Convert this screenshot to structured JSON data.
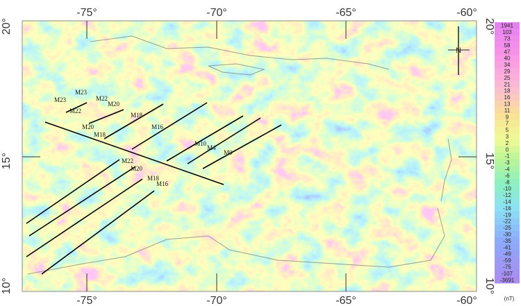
{
  "map": {
    "axes": {
      "top": [
        "-75°",
        "-70°",
        "-65°",
        "-60°"
      ],
      "bottom": [
        "-75°",
        "-70°",
        "-65°",
        "-60°"
      ],
      "left": [
        "20°",
        "15°",
        "10°"
      ],
      "right": [
        "20°",
        "15°",
        "10°"
      ]
    },
    "compass": "N",
    "anomaly_labels": [
      "M23",
      "M23",
      "M22",
      "M20",
      "M22",
      "M18",
      "M20",
      "M18",
      "M16",
      "M10",
      "M4",
      "M0",
      "M22",
      "M20",
      "M18",
      "M16"
    ],
    "colorbar": {
      "labels": [
        "1941",
        "103",
        "73",
        "58",
        "47",
        "40",
        "34",
        "29",
        "25",
        "21",
        "18",
        "16",
        "13",
        "11",
        "9",
        "7",
        "5",
        "3",
        "2",
        "0",
        "-1",
        "-3",
        "-4",
        "-6",
        "-8",
        "-10",
        "-12",
        "-14",
        "-16",
        "-19",
        "-22",
        "-25",
        "-30",
        "-35",
        "-41",
        "-49",
        "-59",
        "-75",
        "-107",
        "-3691"
      ],
      "unit": "(nT)"
    }
  }
}
